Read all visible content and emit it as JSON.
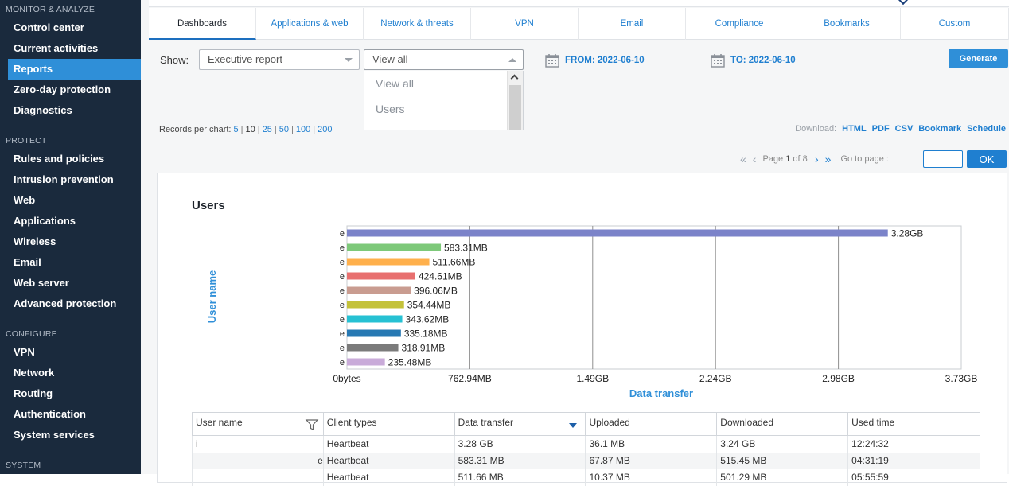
{
  "sidebar": {
    "sections": [
      {
        "heading": "MONITOR & ANALYZE",
        "items": [
          "Control center",
          "Current activities",
          "Reports",
          "Zero-day protection",
          "Diagnostics"
        ]
      },
      {
        "heading": "PROTECT",
        "items": [
          "Rules and policies",
          "Intrusion prevention",
          "Web",
          "Applications",
          "Wireless",
          "Email",
          "Web server",
          "Advanced protection"
        ]
      },
      {
        "heading": "CONFIGURE",
        "items": [
          "VPN",
          "Network",
          "Routing",
          "Authentication",
          "System services"
        ]
      },
      {
        "heading": "SYSTEM",
        "items": []
      }
    ],
    "active_item": "Reports"
  },
  "tabs": [
    "Dashboards",
    "Applications & web",
    "Network & threats",
    "VPN",
    "Email",
    "Compliance",
    "Bookmarks",
    "Custom"
  ],
  "active_tab": "Dashboards",
  "filters": {
    "show_label": "Show:",
    "report_select": "Executive report",
    "view_select": "View all",
    "view_options": [
      "View all",
      "Users"
    ],
    "from_label": "FROM: 2022-06-10",
    "to_label": "TO: 2022-06-10",
    "generate_label": "Generate"
  },
  "records": {
    "label": "Records per chart:",
    "options": [
      "5",
      "10",
      "25",
      "50",
      "100",
      "200"
    ],
    "current": "10"
  },
  "download": {
    "label": "Download:",
    "links": [
      "HTML",
      "PDF",
      "CSV",
      "Bookmark",
      "Schedule"
    ]
  },
  "pager": {
    "first": "«",
    "prev": "‹",
    "page_word": "Page",
    "page": "1",
    "of_word": "of",
    "total": "8",
    "next": "›",
    "last": "»",
    "goto_label": "Go to page :",
    "ok_label": "OK",
    "goto_value": ""
  },
  "report": {
    "title": "Users"
  },
  "colors": {
    "accent": "#2f8fd8",
    "sidebar": "#1a2a3d"
  },
  "chart_data": {
    "type": "bar",
    "orientation": "horizontal",
    "xlabel": "Data transfer",
    "ylabel": "User name",
    "x_tick_labels": [
      "0bytes",
      "762.94MB",
      "1.49GB",
      "2.24GB",
      "2.98GB",
      "3.73GB"
    ],
    "xlim_mb": [
      0,
      3814.7
    ],
    "values_mb": [
      3358.72,
      583.31,
      511.66,
      424.61,
      396.06,
      354.44,
      343.62,
      335.18,
      318.91,
      235.48
    ],
    "value_labels": [
      "3.28GB",
      "583.31MB",
      "511.66MB",
      "424.61MB",
      "396.06MB",
      "354.44MB",
      "343.62MB",
      "335.18MB",
      "318.91MB",
      "235.48MB"
    ],
    "bar_colors": [
      "#7b83c9",
      "#7ec97a",
      "#ffb04c",
      "#e8706f",
      "#c99c90",
      "#c4c23a",
      "#26c1d3",
      "#2779b3",
      "#7b7b7b",
      "#c9abd9"
    ],
    "grid": true
  },
  "table": {
    "columns": [
      "User name",
      "Client types",
      "Data transfer",
      "Uploaded",
      "Downloaded",
      "Used time"
    ],
    "rows": [
      [
        "i",
        "Heartbeat",
        "3.28 GB",
        "36.1 MB",
        "3.24 GB",
        "12:24:32"
      ],
      [
        "e",
        "Heartbeat",
        "583.31 MB",
        "67.87 MB",
        "515.45 MB",
        "04:31:19"
      ],
      [
        "",
        "Heartbeat",
        "511.66 MB",
        "10.37 MB",
        "501.29 MB",
        "05:55:59"
      ]
    ]
  }
}
